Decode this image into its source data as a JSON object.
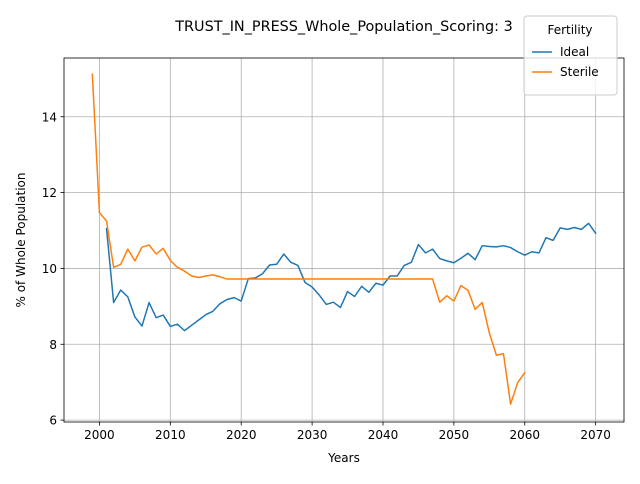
{
  "chart_data": {
    "type": "line",
    "title": "TRUST_IN_PRESS_Whole_Population_Scoring: 3",
    "xlabel": "Years",
    "ylabel": "% of Whole Population",
    "xlim": [
      1995,
      2074
    ],
    "ylim": [
      5.95,
      15.55
    ],
    "xticks": [
      2000,
      2010,
      2020,
      2030,
      2040,
      2050,
      2060,
      2070
    ],
    "yticks": [
      6,
      8,
      10,
      12,
      14
    ],
    "grid": true,
    "legend": {
      "title": "Fertility",
      "placement": "top-right"
    },
    "series": [
      {
        "name": "Ideal",
        "color": "#1f77b4",
        "x": [
          2001,
          2002,
          2003,
          2004,
          2005,
          2006,
          2007,
          2008,
          2009,
          2010,
          2011,
          2012,
          2013,
          2014,
          2015,
          2016,
          2017,
          2018,
          2019,
          2020,
          2021,
          2022,
          2023,
          2024,
          2025,
          2026,
          2027,
          2028,
          2029,
          2030,
          2031,
          2032,
          2033,
          2034,
          2035,
          2036,
          2037,
          2038,
          2039,
          2040,
          2041,
          2042,
          2043,
          2044,
          2045,
          2046,
          2047,
          2048,
          2049,
          2050,
          2051,
          2052,
          2053,
          2054,
          2055,
          2056,
          2057,
          2058,
          2059,
          2060,
          2061,
          2062,
          2063,
          2064,
          2065,
          2066,
          2067,
          2068,
          2069,
          2070
        ],
        "values": [
          11.05,
          9.1,
          9.43,
          9.25,
          8.72,
          8.48,
          9.1,
          8.7,
          8.77,
          8.47,
          8.53,
          8.36,
          8.5,
          8.64,
          8.78,
          8.87,
          9.07,
          9.18,
          9.23,
          9.14,
          9.73,
          9.75,
          9.86,
          10.09,
          10.11,
          10.38,
          10.16,
          10.08,
          9.63,
          9.51,
          9.3,
          9.05,
          9.11,
          8.97,
          9.39,
          9.26,
          9.53,
          9.37,
          9.61,
          9.56,
          9.8,
          9.8,
          10.08,
          10.16,
          10.63,
          10.41,
          10.51,
          10.26,
          10.2,
          10.15,
          10.27,
          10.4,
          10.23,
          10.6,
          10.58,
          10.57,
          10.6,
          10.55,
          10.44,
          10.35,
          10.44,
          10.41,
          10.81,
          10.74,
          11.07,
          11.03,
          11.08,
          11.03,
          11.19,
          10.93
        ]
      },
      {
        "name": "Sterile",
        "color": "#ff7f0e",
        "x": [
          1999,
          2000,
          2001,
          2002,
          2003,
          2004,
          2005,
          2006,
          2007,
          2008,
          2009,
          2010,
          2011,
          2012,
          2013,
          2014,
          2015,
          2016,
          2017,
          2018,
          2019,
          2020,
          2021,
          2022,
          2023,
          2024,
          2025,
          2026,
          2027,
          2028,
          2029,
          2030,
          2031,
          2032,
          2033,
          2034,
          2035,
          2036,
          2037,
          2038,
          2039,
          2040,
          2041,
          2042,
          2043,
          2044,
          2045,
          2046,
          2047,
          2048,
          2049,
          2050,
          2051,
          2052,
          2053,
          2054,
          2055,
          2056,
          2057,
          2058,
          2059,
          2060
        ],
        "values": [
          15.12,
          11.47,
          11.25,
          10.03,
          10.11,
          10.51,
          10.2,
          10.56,
          10.62,
          10.38,
          10.53,
          10.21,
          10.03,
          9.93,
          9.8,
          9.76,
          9.8,
          9.83,
          9.78,
          9.72,
          9.72,
          9.72,
          9.72,
          9.72,
          9.72,
          9.72,
          9.72,
          9.72,
          9.72,
          9.72,
          9.72,
          9.72,
          9.72,
          9.72,
          9.72,
          9.72,
          9.72,
          9.72,
          9.72,
          9.72,
          9.72,
          9.72,
          9.72,
          9.72,
          9.72,
          9.72,
          9.72,
          9.72,
          9.72,
          9.11,
          9.28,
          9.14,
          9.55,
          9.42,
          8.92,
          9.1,
          8.3,
          7.71,
          7.75,
          6.42,
          6.99,
          7.25
        ]
      }
    ]
  }
}
